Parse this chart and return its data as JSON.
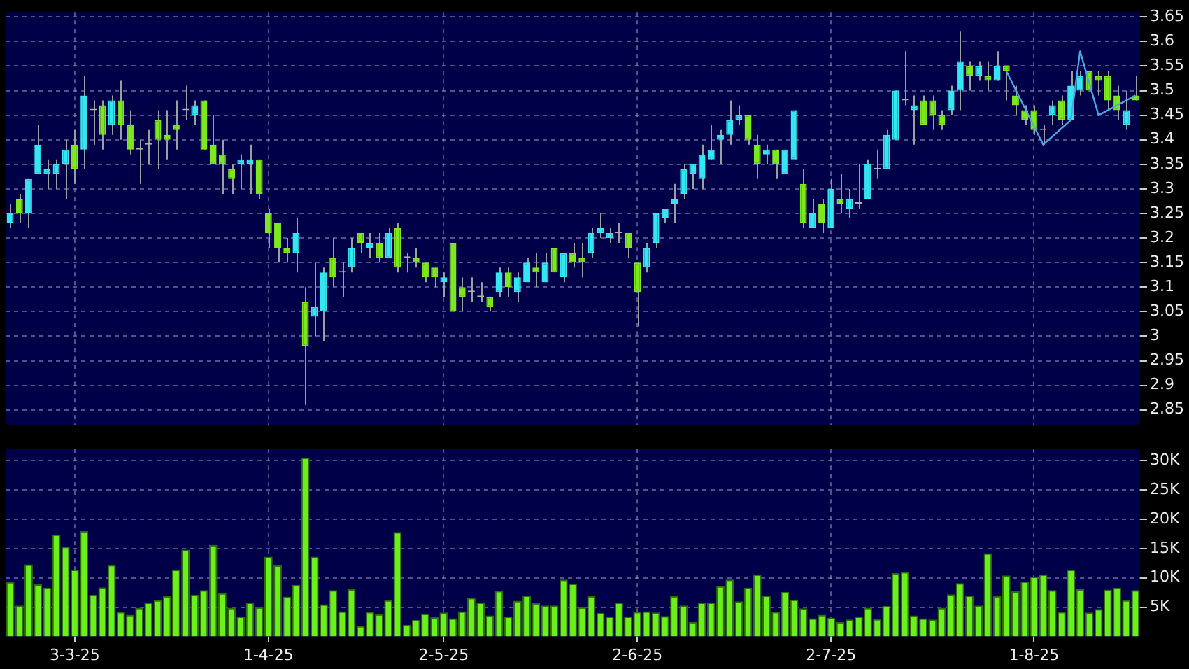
{
  "chart_data": [
    {
      "type": "candlestick",
      "categories": [
        null,
        null,
        null,
        null,
        null,
        null,
        null,
        null,
        null,
        null,
        null,
        null,
        null,
        null,
        null,
        null,
        null,
        null,
        null,
        null,
        null,
        null,
        null,
        null,
        null,
        null,
        null,
        null,
        null,
        null,
        null,
        null,
        null,
        null,
        null,
        null,
        null,
        null,
        null,
        null,
        null,
        null,
        null,
        null,
        null,
        null,
        null,
        null,
        null,
        null,
        null,
        null,
        null,
        null,
        null,
        null,
        null,
        null,
        null,
        null,
        null,
        null,
        null,
        null,
        null,
        null,
        null,
        null,
        null,
        null,
        null,
        null,
        null,
        null,
        null,
        null,
        null,
        null,
        null,
        null,
        null,
        null,
        null,
        null,
        null,
        null,
        null,
        null,
        null,
        null,
        null,
        null,
        null,
        null,
        null,
        null,
        null,
        null,
        null,
        null,
        null,
        null,
        null,
        null,
        null,
        null,
        null,
        null,
        null,
        null,
        null,
        null,
        null,
        null,
        null,
        null,
        null,
        null,
        null,
        null,
        null,
        null,
        null
      ],
      "ohlc": [
        [
          3.23,
          3.27,
          3.22,
          3.25
        ],
        [
          3.28,
          3.29,
          3.23,
          3.25
        ],
        [
          3.25,
          3.32,
          3.22,
          3.32
        ],
        [
          3.33,
          3.43,
          3.33,
          3.39
        ],
        [
          3.33,
          3.36,
          3.3,
          3.34
        ],
        [
          3.33,
          3.36,
          3.3,
          3.35
        ],
        [
          3.35,
          3.4,
          3.28,
          3.38
        ],
        [
          3.39,
          3.42,
          3.31,
          3.34
        ],
        [
          3.38,
          3.53,
          3.34,
          3.49
        ],
        [
          3.46,
          3.48,
          3.39,
          3.46
        ],
        [
          3.47,
          3.48,
          3.38,
          3.41
        ],
        [
          3.43,
          3.49,
          3.41,
          3.48
        ],
        [
          3.48,
          3.52,
          3.4,
          3.43
        ],
        [
          3.43,
          3.46,
          3.37,
          3.38
        ],
        [
          3.38,
          3.4,
          3.31,
          3.38
        ],
        [
          3.39,
          3.42,
          3.35,
          3.39
        ],
        [
          3.44,
          3.46,
          3.34,
          3.4
        ],
        [
          3.41,
          3.46,
          3.36,
          3.4
        ],
        [
          3.43,
          3.48,
          3.38,
          3.42
        ],
        [
          3.46,
          3.51,
          3.44,
          3.46
        ],
        [
          3.45,
          3.48,
          3.43,
          3.47
        ],
        [
          3.48,
          3.48,
          3.38,
          3.38
        ],
        [
          3.39,
          3.45,
          3.35,
          3.35
        ],
        [
          3.37,
          3.4,
          3.29,
          3.35
        ],
        [
          3.34,
          3.35,
          3.29,
          3.32
        ],
        [
          3.35,
          3.37,
          3.3,
          3.36
        ],
        [
          3.35,
          3.39,
          3.29,
          3.36
        ],
        [
          3.36,
          3.36,
          3.28,
          3.29
        ],
        [
          3.25,
          3.26,
          3.18,
          3.21
        ],
        [
          3.23,
          3.23,
          3.15,
          3.18
        ],
        [
          3.18,
          3.2,
          3.15,
          3.17
        ],
        [
          3.17,
          3.24,
          3.13,
          3.21
        ],
        [
          3.07,
          3.1,
          2.86,
          2.98
        ],
        [
          3.04,
          3.15,
          3.0,
          3.06
        ],
        [
          3.05,
          3.14,
          2.99,
          3.13
        ],
        [
          3.16,
          3.2,
          3.1,
          3.12
        ],
        [
          3.13,
          3.15,
          3.08,
          3.13
        ],
        [
          3.14,
          3.2,
          3.13,
          3.18
        ],
        [
          3.21,
          3.21,
          3.17,
          3.19
        ],
        [
          3.18,
          3.21,
          3.16,
          3.19
        ],
        [
          3.19,
          3.21,
          3.15,
          3.16
        ],
        [
          3.16,
          3.22,
          3.16,
          3.21
        ],
        [
          3.22,
          3.23,
          3.13,
          3.14
        ],
        [
          3.16,
          3.17,
          3.13,
          3.16
        ],
        [
          3.16,
          3.18,
          3.14,
          3.15
        ],
        [
          3.15,
          3.15,
          3.11,
          3.12
        ],
        [
          3.14,
          3.14,
          3.1,
          3.12
        ],
        [
          3.11,
          3.13,
          3.08,
          3.12
        ],
        [
          3.19,
          3.19,
          3.05,
          3.05
        ],
        [
          3.1,
          3.12,
          3.05,
          3.08
        ],
        [
          3.09,
          3.12,
          3.07,
          3.09
        ],
        [
          3.08,
          3.11,
          3.07,
          3.08
        ],
        [
          3.08,
          3.08,
          3.05,
          3.06
        ],
        [
          3.09,
          3.14,
          3.08,
          3.13
        ],
        [
          3.13,
          3.14,
          3.08,
          3.1
        ],
        [
          3.09,
          3.13,
          3.07,
          3.12
        ],
        [
          3.11,
          3.16,
          3.11,
          3.15
        ],
        [
          3.14,
          3.17,
          3.1,
          3.13
        ],
        [
          3.11,
          3.17,
          3.11,
          3.15
        ],
        [
          3.18,
          3.18,
          3.13,
          3.13
        ],
        [
          3.12,
          3.17,
          3.11,
          3.17
        ],
        [
          3.17,
          3.19,
          3.14,
          3.15
        ],
        [
          3.16,
          3.19,
          3.12,
          3.15
        ],
        [
          3.17,
          3.22,
          3.16,
          3.21
        ],
        [
          3.21,
          3.25,
          3.2,
          3.22
        ],
        [
          3.2,
          3.22,
          3.19,
          3.21
        ],
        [
          3.21,
          3.23,
          3.19,
          3.21
        ],
        [
          3.21,
          3.21,
          3.16,
          3.18
        ],
        [
          3.15,
          3.15,
          3.02,
          3.09
        ],
        [
          3.14,
          3.19,
          3.13,
          3.18
        ],
        [
          3.19,
          3.25,
          3.18,
          3.25
        ],
        [
          3.24,
          3.26,
          3.23,
          3.26
        ],
        [
          3.27,
          3.31,
          3.23,
          3.28
        ],
        [
          3.29,
          3.35,
          3.28,
          3.34
        ],
        [
          3.33,
          3.35,
          3.3,
          3.35
        ],
        [
          3.32,
          3.39,
          3.3,
          3.37
        ],
        [
          3.36,
          3.43,
          3.36,
          3.38
        ],
        [
          3.4,
          3.42,
          3.35,
          3.41
        ],
        [
          3.41,
          3.48,
          3.39,
          3.44
        ],
        [
          3.44,
          3.47,
          3.43,
          3.45
        ],
        [
          3.45,
          3.45,
          3.39,
          3.4
        ],
        [
          3.39,
          3.41,
          3.32,
          3.35
        ],
        [
          3.37,
          3.39,
          3.35,
          3.38
        ],
        [
          3.38,
          3.38,
          3.32,
          3.35
        ],
        [
          3.33,
          3.38,
          3.33,
          3.38
        ],
        [
          3.36,
          3.46,
          3.36,
          3.46
        ],
        [
          3.31,
          3.34,
          3.22,
          3.23
        ],
        [
          3.22,
          3.28,
          3.22,
          3.25
        ],
        [
          3.27,
          3.28,
          3.21,
          3.23
        ],
        [
          3.22,
          3.32,
          3.22,
          3.3
        ],
        [
          3.28,
          3.33,
          3.25,
          3.27
        ],
        [
          3.26,
          3.3,
          3.24,
          3.28
        ],
        [
          3.27,
          3.35,
          3.26,
          3.27
        ],
        [
          3.28,
          3.36,
          3.28,
          3.35
        ],
        [
          3.34,
          3.38,
          3.32,
          3.34
        ],
        [
          3.34,
          3.42,
          3.34,
          3.41
        ],
        [
          3.4,
          3.5,
          3.4,
          3.5
        ],
        [
          3.48,
          3.58,
          3.47,
          3.48
        ],
        [
          3.46,
          3.49,
          3.39,
          3.47
        ],
        [
          3.48,
          3.49,
          3.43,
          3.43
        ],
        [
          3.48,
          3.49,
          3.42,
          3.45
        ],
        [
          3.45,
          3.46,
          3.42,
          3.43
        ],
        [
          3.46,
          3.51,
          3.45,
          3.5
        ],
        [
          3.5,
          3.62,
          3.46,
          3.56
        ],
        [
          3.55,
          3.56,
          3.5,
          3.53
        ],
        [
          3.53,
          3.56,
          3.52,
          3.55
        ],
        [
          3.53,
          3.56,
          3.5,
          3.52
        ],
        [
          3.52,
          3.58,
          3.52,
          3.55
        ],
        [
          3.55,
          3.55,
          3.48,
          3.54
        ],
        [
          3.49,
          3.51,
          3.45,
          3.47
        ],
        [
          3.46,
          3.47,
          3.43,
          3.44
        ],
        [
          3.46,
          3.47,
          3.41,
          3.42
        ],
        [
          3.42,
          3.43,
          3.39,
          3.42
        ],
        [
          3.45,
          3.48,
          3.43,
          3.47
        ],
        [
          3.48,
          3.49,
          3.43,
          3.44
        ],
        [
          3.44,
          3.54,
          3.44,
          3.51
        ],
        [
          3.5,
          3.54,
          3.49,
          3.53
        ],
        [
          3.54,
          3.54,
          3.5,
          3.5
        ],
        [
          3.53,
          3.54,
          3.49,
          3.52
        ],
        [
          3.53,
          3.54,
          3.46,
          3.48
        ],
        [
          3.49,
          3.51,
          3.44,
          3.46
        ],
        [
          3.43,
          3.5,
          3.42,
          3.46
        ],
        [
          3.49,
          3.53,
          3.48,
          3.48
        ]
      ],
      "colors": [
        "#33e6f2",
        "#7ee81e",
        "#33e6f2",
        "#33e6f2",
        "#33e6f2",
        "#33e6f2",
        "#33e6f2",
        "#7ee81e",
        "#33e6f2",
        "#b0b0b0",
        "#7ee81e",
        "#33e6f2",
        "#7ee81e",
        "#7ee81e",
        "#b0b0b0",
        "#b0b0b0",
        "#7ee81e",
        "#7ee81e",
        "#7ee81e",
        "#b0b0b0",
        "#33e6f2",
        "#7ee81e",
        "#7ee81e",
        "#7ee81e",
        "#7ee81e",
        "#33e6f2",
        "#33e6f2",
        "#7ee81e",
        "#7ee81e",
        "#7ee81e",
        "#7ee81e",
        "#33e6f2",
        "#7ee81e",
        "#33e6f2",
        "#33e6f2",
        "#7ee81e",
        "#b0b0b0",
        "#33e6f2",
        "#7ee81e",
        "#33e6f2",
        "#7ee81e",
        "#33e6f2",
        "#7ee81e",
        "#b0b0b0",
        "#7ee81e",
        "#7ee81e",
        "#7ee81e",
        "#33e6f2",
        "#7ee81e",
        "#7ee81e",
        "#b0b0b0",
        "#b0b0b0",
        "#7ee81e",
        "#33e6f2",
        "#7ee81e",
        "#33e6f2",
        "#33e6f2",
        "#7ee81e",
        "#33e6f2",
        "#7ee81e",
        "#33e6f2",
        "#7ee81e",
        "#7ee81e",
        "#33e6f2",
        "#33e6f2",
        "#33e6f2",
        "#b0b0b0",
        "#7ee81e",
        "#7ee81e",
        "#33e6f2",
        "#33e6f2",
        "#33e6f2",
        "#33e6f2",
        "#33e6f2",
        "#33e6f2",
        "#33e6f2",
        "#33e6f2",
        "#33e6f2",
        "#33e6f2",
        "#33e6f2",
        "#7ee81e",
        "#7ee81e",
        "#33e6f2",
        "#7ee81e",
        "#33e6f2",
        "#33e6f2",
        "#7ee81e",
        "#33e6f2",
        "#7ee81e",
        "#33e6f2",
        "#7ee81e",
        "#33e6f2",
        "#b0b0b0",
        "#33e6f2",
        "#b0b0b0",
        "#33e6f2",
        "#33e6f2",
        "#b0b0b0",
        "#33e6f2",
        "#7ee81e",
        "#7ee81e",
        "#7ee81e",
        "#33e6f2",
        "#33e6f2",
        "#7ee81e",
        "#33e6f2",
        "#7ee81e",
        "#33e6f2",
        "#7ee81e",
        "#7ee81e",
        "#7ee81e",
        "#7ee81e",
        "#b0b0b0",
        "#33e6f2",
        "#7ee81e",
        "#33e6f2",
        "#33e6f2",
        "#7ee81e",
        "#7ee81e",
        "#7ee81e",
        "#7ee81e",
        "#33e6f2",
        "#7ee81e"
      ],
      "series": [
        {
          "type": "line",
          "color": "#4aa8e8",
          "values": [
            null,
            null,
            null,
            null,
            null,
            null,
            null,
            null,
            null,
            null,
            null,
            null,
            null,
            null,
            null,
            null,
            null,
            null,
            null,
            null,
            null,
            null,
            null,
            null,
            null,
            null,
            null,
            null,
            null,
            null,
            null,
            null,
            null,
            null,
            null,
            null,
            null,
            null,
            null,
            null,
            null,
            null,
            null,
            null,
            null,
            null,
            null,
            null,
            null,
            null,
            null,
            null,
            null,
            null,
            null,
            null,
            null,
            null,
            null,
            null,
            null,
            null,
            null,
            null,
            null,
            null,
            null,
            null,
            null,
            null,
            null,
            null,
            null,
            null,
            null,
            null,
            null,
            null,
            null,
            null,
            null,
            null,
            null,
            null,
            null,
            null,
            null,
            null,
            null,
            null,
            null,
            null,
            null,
            null,
            null,
            null,
            null,
            null,
            null,
            null,
            null,
            null,
            null,
            null,
            null,
            null,
            null,
            null,
            3.54,
            null,
            null,
            null,
            3.39,
            null,
            null,
            3.44,
            3.58,
            null,
            3.45,
            null,
            null,
            null,
            3.49
          ]
        }
      ],
      "ylim": [
        2.82,
        3.66
      ],
      "yticks": [
        2.85,
        2.9,
        2.95,
        3,
        3.05,
        3.1,
        3.15,
        3.2,
        3.25,
        3.3,
        3.35,
        3.4,
        3.45,
        3.5,
        3.55,
        3.6,
        3.65
      ],
      "grid": true,
      "legend": false,
      "tick_labels": "y"
    },
    {
      "type": "bar",
      "categories": [
        null,
        null,
        null,
        null,
        null,
        null,
        null,
        "3-3-25",
        null,
        null,
        null,
        null,
        null,
        null,
        null,
        null,
        null,
        null,
        null,
        null,
        null,
        null,
        null,
        null,
        null,
        null,
        null,
        null,
        "1-4-25",
        null,
        null,
        null,
        null,
        null,
        null,
        null,
        null,
        null,
        null,
        null,
        null,
        null,
        null,
        null,
        null,
        null,
        null,
        "2-5-25",
        null,
        null,
        null,
        null,
        null,
        null,
        null,
        null,
        null,
        null,
        null,
        null,
        null,
        null,
        null,
        null,
        null,
        null,
        null,
        null,
        "2-6-25",
        null,
        null,
        null,
        null,
        null,
        null,
        null,
        null,
        null,
        null,
        null,
        null,
        null,
        null,
        null,
        null,
        null,
        null,
        null,
        null,
        "2-7-25",
        null,
        null,
        null,
        null,
        null,
        null,
        null,
        null,
        null,
        null,
        null,
        null,
        null,
        null,
        null,
        null,
        null,
        null,
        null,
        null,
        null,
        "1-8-25",
        null,
        null,
        null,
        null,
        null,
        null,
        null,
        null,
        null,
        null,
        null
      ],
      "color": "#6cf01a",
      "values": [
        9300,
        5300,
        12300,
        8900,
        8300,
        17400,
        15300,
        11400,
        18000,
        7100,
        8400,
        12200,
        4200,
        3700,
        4900,
        5800,
        6200,
        6900,
        11400,
        14800,
        7100,
        7900,
        15600,
        7400,
        4900,
        3400,
        5800,
        5000,
        13600,
        12100,
        6800,
        8800,
        30500,
        13600,
        5500,
        7900,
        4300,
        8100,
        1800,
        4200,
        3800,
        6200,
        17800,
        2000,
        2800,
        3900,
        3300,
        4100,
        3100,
        4300,
        6600,
        5800,
        3600,
        7800,
        3400,
        6100,
        7000,
        5700,
        5300,
        5300,
        9700,
        9000,
        5000,
        6900,
        4000,
        3400,
        5800,
        3400,
        4200,
        4300,
        4100,
        3500,
        6900,
        5300,
        2500,
        5800,
        5800,
        8600,
        9700,
        6000,
        8300,
        10600,
        7000,
        4200,
        7600,
        6300,
        4800,
        3100,
        3700,
        3200,
        2500,
        2900,
        3400,
        4900,
        3000,
        5200,
        10800,
        11000,
        3600,
        3100,
        2900,
        4900,
        7200,
        9100,
        7000,
        5300,
        14200,
        6900,
        10400,
        7700,
        9400,
        10200,
        10600,
        7900,
        4200,
        11400,
        8100,
        4100,
        4700,
        8000,
        8300,
        6200,
        7900
      ],
      "ylim": [
        0,
        32000
      ],
      "yticks": [
        {
          "value": 5000,
          "label": "5K"
        },
        {
          "value": 10000,
          "label": "10K"
        },
        {
          "value": 15000,
          "label": "15K"
        },
        {
          "value": 20000,
          "label": "20K"
        },
        {
          "value": 25000,
          "label": "25K"
        },
        {
          "value": 30000,
          "label": "30K"
        }
      ],
      "grid": true,
      "legend": false
    }
  ]
}
